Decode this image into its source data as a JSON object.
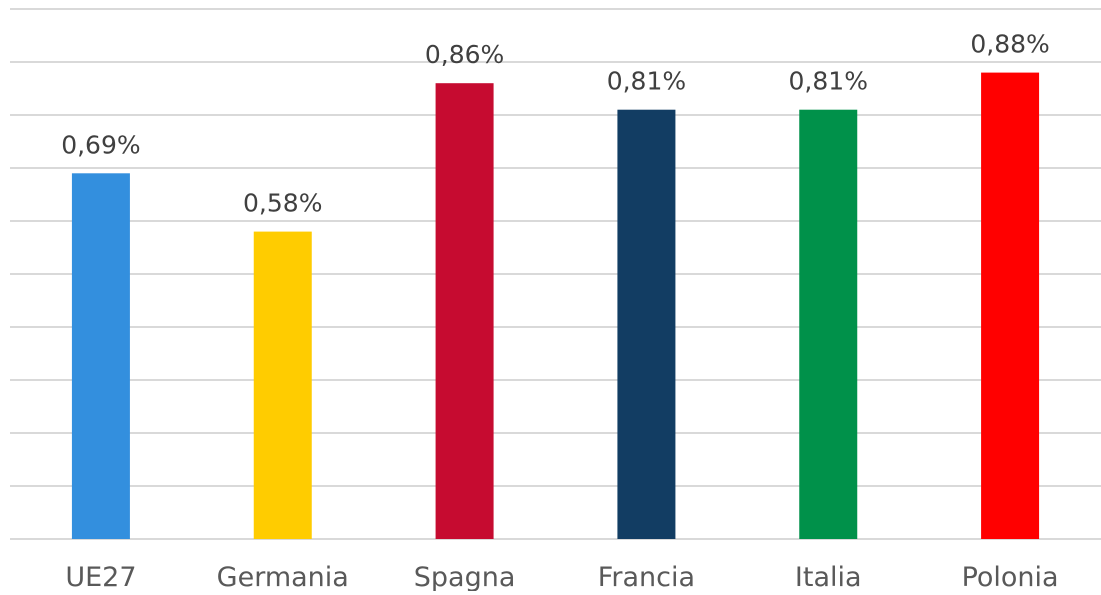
{
  "chart_data": {
    "type": "bar",
    "title": "",
    "xlabel": "",
    "ylabel": "",
    "categories": [
      "UE27",
      "Germania",
      "Spagna",
      "Francia",
      "Italia",
      "Polonia"
    ],
    "values": [
      0.69,
      0.58,
      0.86,
      0.81,
      0.81,
      0.88
    ],
    "data_labels": [
      "0,69%",
      "0,58%",
      "0,86%",
      "0,81%",
      "0,81%",
      "0,88%"
    ],
    "bar_colors": [
      "#338FDE",
      "#FFCC00",
      "#C60B30",
      "#123D63",
      "#00914A",
      "#FF0000"
    ],
    "gridline_color": "#D9D9D9",
    "ylim": [
      0,
      1.0
    ],
    "ytick_step": 0.1,
    "grid": true,
    "legend": "none"
  }
}
